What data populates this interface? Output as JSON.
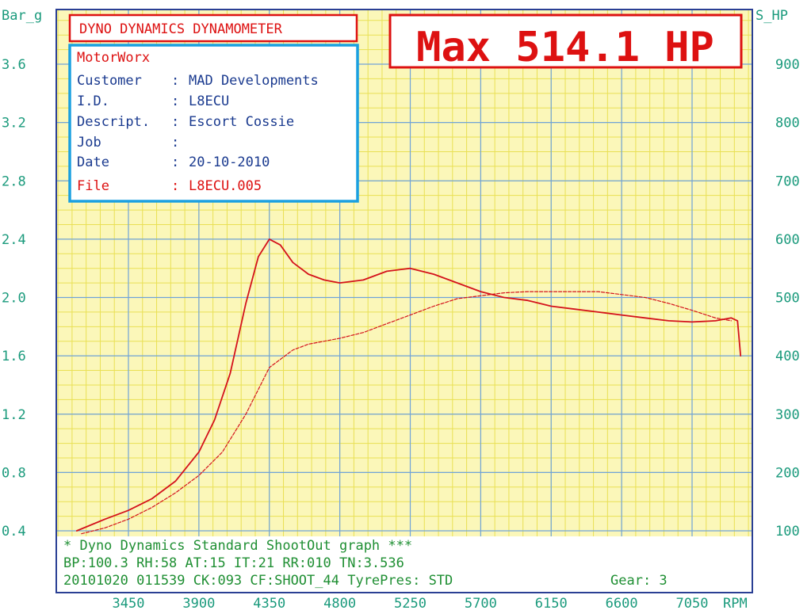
{
  "colors": {
    "plot_background": "#fbf7b9",
    "grid_major": "#6fa3d9",
    "grid_minor": "#e9e054",
    "frame": "#2a3f94",
    "axis_text": "#1a9a7c",
    "footer_text": "#1f8f33",
    "curve": "#d4121b",
    "title_red": "#dd1111",
    "info_border": "#1aa0e0",
    "info_text": "#1a3a8f"
  },
  "header": {
    "title": "DYNO DYNAMICS DYNAMOMETER",
    "max_label": "Max 514.1 HP"
  },
  "info_box": {
    "shop": "MotorWorx",
    "rows": [
      {
        "label": "Customer",
        "sep": ":",
        "value": "MAD Developments"
      },
      {
        "label": "I.D.",
        "sep": ":",
        "value": "L8ECU"
      },
      {
        "label": "Descript.",
        "sep": ":",
        "value": "Escort Cossie"
      },
      {
        "label": "Job",
        "sep": ":",
        "value": ""
      },
      {
        "label": "Date",
        "sep": ":",
        "value": "20-10-2010"
      }
    ],
    "file_row": {
      "label": "File",
      "sep": ":",
      "value": "L8ECU.005"
    }
  },
  "footer": {
    "line1": "* Dyno Dynamics Standard ShootOut graph ***",
    "line2": "BP:100.3 RH:58 AT:15 IT:21  RR:010 TN:3.536",
    "line3": "20101020 011539 CK:093 CF:SHOOT_44 TyrePres: STD",
    "gear": "Gear: 3"
  },
  "chart_data": {
    "type": "line",
    "title": "DYNO DYNAMICS DYNAMOMETER",
    "xlabel": "RPM",
    "ylabel_left": "Bar_g",
    "ylabel_right": "S_HP",
    "xlim": [
      3000,
      7600
    ],
    "ylim_left": [
      0.2,
      3.8
    ],
    "ylim_right": [
      50,
      950
    ],
    "x_ticks": [
      3450,
      3900,
      4350,
      4800,
      5250,
      5700,
      6150,
      6600,
      7050
    ],
    "y_left_ticks": [
      "0.4",
      "0.8",
      "1.2",
      "1.6",
      "2.0",
      "2.4",
      "2.8",
      "3.2",
      "3.6"
    ],
    "y_right_ticks": [
      "100",
      "200",
      "300",
      "400",
      "500",
      "600",
      "700",
      "800",
      "900"
    ],
    "grid": true,
    "series": [
      {
        "style": "solid",
        "axis": "right",
        "x": [
          3120,
          3300,
          3450,
          3600,
          3750,
          3900,
          4000,
          4100,
          4200,
          4280,
          4350,
          4420,
          4500,
          4600,
          4700,
          4800,
          4950,
          5100,
          5250,
          5400,
          5550,
          5700,
          5850,
          6000,
          6150,
          6300,
          6450,
          6600,
          6750,
          6900,
          7050,
          7200,
          7300,
          7340,
          7360
        ],
        "values": [
          100,
          120,
          135,
          155,
          185,
          235,
          290,
          370,
          490,
          570,
          600,
          590,
          560,
          540,
          530,
          525,
          530,
          545,
          550,
          540,
          525,
          510,
          500,
          495,
          485,
          480,
          475,
          470,
          465,
          460,
          458,
          460,
          465,
          460,
          400
        ]
      },
      {
        "style": "dashed",
        "axis": "right",
        "x": [
          3150,
          3300,
          3450,
          3600,
          3750,
          3900,
          4050,
          4200,
          4350,
          4500,
          4600,
          4700,
          4800,
          4950,
          5100,
          5250,
          5400,
          5550,
          5700,
          5850,
          6000,
          6150,
          6300,
          6450,
          6600,
          6750,
          6900,
          7050,
          7200,
          7300
        ],
        "values": [
          95,
          105,
          120,
          140,
          165,
          195,
          235,
          300,
          380,
          410,
          420,
          425,
          430,
          440,
          455,
          470,
          485,
          498,
          503,
          508,
          510,
          510,
          510,
          510,
          505,
          500,
          490,
          478,
          465,
          460
        ]
      }
    ]
  }
}
